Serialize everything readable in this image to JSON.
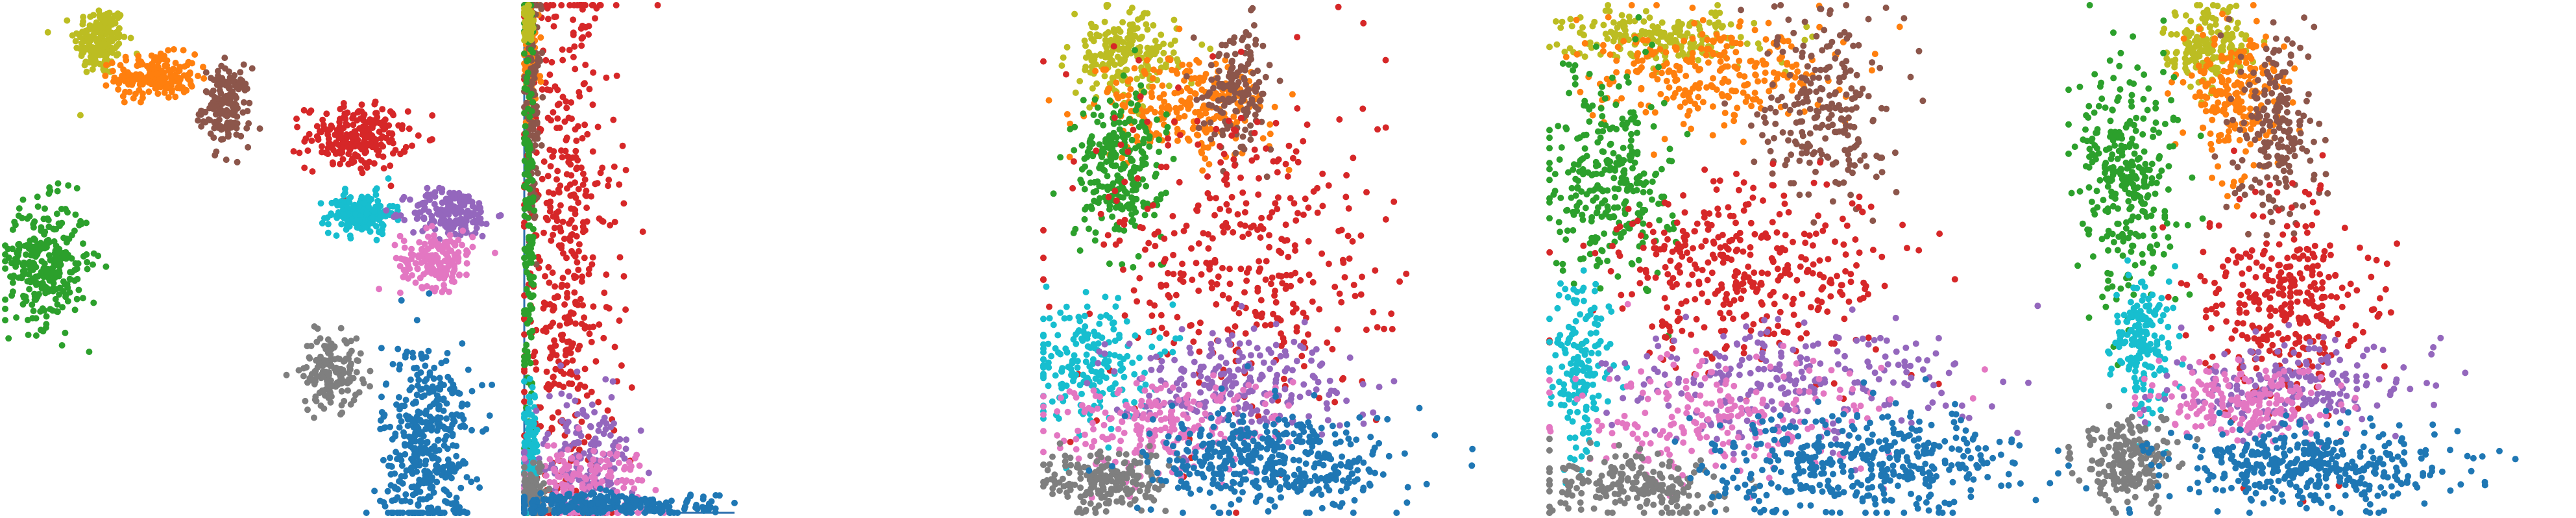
{
  "figure": {
    "palette": {
      "blue": "#1f77b4",
      "orange": "#ff7f0e",
      "green": "#2ca02c",
      "red": "#d62728",
      "purple": "#9467bd",
      "brown": "#8c564b",
      "pink": "#e377c2",
      "gray": "#7f7f7f",
      "olive": "#bcbd22",
      "cyan": "#17becf"
    }
  },
  "chart_data": [
    {
      "type": "scatter",
      "title": "",
      "xlabel": "",
      "ylabel": "",
      "axes_visible": false,
      "grid": false,
      "xlim": [
        0,
        100
      ],
      "ylim": [
        0,
        100
      ],
      "clusters": [
        {
          "color": "olive",
          "cx": 19,
          "cy": 93,
          "sx": 2.6,
          "sy": 3.5,
          "n": 180
        },
        {
          "color": "orange",
          "cx": 30,
          "cy": 86,
          "sx": 4.0,
          "sy": 2.2,
          "n": 190
        },
        {
          "color": "brown",
          "cx": 44,
          "cy": 80,
          "sx": 2.4,
          "sy": 3.8,
          "n": 160
        },
        {
          "color": "red",
          "cx": 70,
          "cy": 74,
          "sx": 5.0,
          "sy": 3.2,
          "n": 220
        },
        {
          "color": "cyan",
          "cx": 71,
          "cy": 59,
          "sx": 3.2,
          "sy": 2.0,
          "n": 170
        },
        {
          "color": "purple",
          "cx": 89,
          "cy": 59,
          "sx": 4.2,
          "sy": 2.4,
          "n": 190
        },
        {
          "color": "pink",
          "cx": 86,
          "cy": 50,
          "sx": 3.6,
          "sy": 2.8,
          "n": 170
        },
        {
          "color": "green",
          "cx": 8,
          "cy": 49,
          "sx": 4.2,
          "sy": 6.0,
          "n": 300
        },
        {
          "color": "gray",
          "cx": 65,
          "cy": 28,
          "sx": 3.0,
          "sy": 3.5,
          "n": 150
        },
        {
          "color": "blue",
          "cx": 84,
          "cy": 13,
          "sx": 4.5,
          "sy": 10.5,
          "n": 420
        }
      ]
    },
    {
      "type": "scatter",
      "title": "",
      "xlabel": "",
      "ylabel": "",
      "axes_visible": false,
      "grid": false,
      "xlim": [
        0,
        100
      ],
      "ylim": [
        0,
        100
      ],
      "clusters": [
        {
          "color": "red",
          "cx": 20,
          "cy": 50,
          "sx": 12,
          "sy": 30,
          "n": 480
        },
        {
          "color": "orange",
          "cx": 3,
          "cy": 90,
          "sx": 2.0,
          "sy": 7,
          "n": 110
        },
        {
          "color": "brown",
          "cx": 4,
          "cy": 80,
          "sx": 2.0,
          "sy": 10,
          "n": 110
        },
        {
          "color": "green",
          "cx": 2,
          "cy": 55,
          "sx": 1.5,
          "sy": 25,
          "n": 170
        },
        {
          "color": "cyan",
          "cx": 3,
          "cy": 12,
          "sx": 2.0,
          "sy": 6,
          "n": 90
        },
        {
          "color": "purple",
          "cx": 28,
          "cy": 11,
          "sx": 12,
          "sy": 6,
          "n": 150
        },
        {
          "color": "pink",
          "cx": 30,
          "cy": 6,
          "sx": 14,
          "sy": 4,
          "n": 150
        },
        {
          "color": "gray",
          "cx": 4,
          "cy": 4,
          "sx": 3.0,
          "sy": 3,
          "n": 90
        },
        {
          "color": "blue",
          "cx": 40,
          "cy": 1.5,
          "sx": 25,
          "sy": 1.2,
          "n": 260
        },
        {
          "color": "olive",
          "cx": 2,
          "cy": 97,
          "sx": 1.5,
          "sy": 2,
          "n": 50
        }
      ]
    },
    {
      "type": "scatter",
      "title": "",
      "xlabel": "",
      "ylabel": "",
      "axes_visible": false,
      "grid": false,
      "xlim": [
        0,
        100
      ],
      "ylim": [
        0,
        100
      ],
      "clusters": [
        {
          "color": "olive",
          "cx": 18,
          "cy": 90,
          "sx": 6,
          "sy": 4,
          "n": 200
        },
        {
          "color": "orange",
          "cx": 32,
          "cy": 80,
          "sx": 10,
          "sy": 5,
          "n": 240
        },
        {
          "color": "brown",
          "cx": 44,
          "cy": 84,
          "sx": 4,
          "sy": 6,
          "n": 150
        },
        {
          "color": "green",
          "cx": 17,
          "cy": 68,
          "sx": 5,
          "sy": 7,
          "n": 260
        },
        {
          "color": "red",
          "cx": 45,
          "cy": 50,
          "sx": 16,
          "sy": 18,
          "n": 380
        },
        {
          "color": "cyan",
          "cx": 10,
          "cy": 30,
          "sx": 7,
          "sy": 6,
          "n": 200
        },
        {
          "color": "purple",
          "cx": 42,
          "cy": 26,
          "sx": 14,
          "sy": 5,
          "n": 230
        },
        {
          "color": "pink",
          "cx": 26,
          "cy": 17,
          "sx": 14,
          "sy": 5,
          "n": 220
        },
        {
          "color": "gray",
          "cx": 14,
          "cy": 6,
          "sx": 7,
          "sy": 3,
          "n": 200
        },
        {
          "color": "blue",
          "cx": 52,
          "cy": 10,
          "sx": 14,
          "sy": 5,
          "n": 420
        }
      ]
    },
    {
      "type": "scatter",
      "title": "",
      "xlabel": "",
      "ylabel": "",
      "axes_visible": false,
      "grid": false,
      "xlim": [
        0,
        100
      ],
      "ylim": [
        0,
        100
      ],
      "clusters": [
        {
          "color": "olive",
          "cx": 22,
          "cy": 94,
          "sx": 9,
          "sy": 2.5,
          "n": 200
        },
        {
          "color": "orange",
          "cx": 32,
          "cy": 86,
          "sx": 13,
          "sy": 5,
          "n": 260
        },
        {
          "color": "brown",
          "cx": 54,
          "cy": 80,
          "sx": 6,
          "sy": 10,
          "n": 230
        },
        {
          "color": "green",
          "cx": 12,
          "cy": 66,
          "sx": 6,
          "sy": 10,
          "n": 290
        },
        {
          "color": "red",
          "cx": 40,
          "cy": 48,
          "sx": 15,
          "sy": 9,
          "n": 360
        },
        {
          "color": "cyan",
          "cx": 6,
          "cy": 28,
          "sx": 3,
          "sy": 9,
          "n": 160
        },
        {
          "color": "purple",
          "cx": 46,
          "cy": 26,
          "sx": 18,
          "sy": 6,
          "n": 240
        },
        {
          "color": "pink",
          "cx": 34,
          "cy": 18,
          "sx": 16,
          "sy": 6,
          "n": 220
        },
        {
          "color": "gray",
          "cx": 18,
          "cy": 5,
          "sx": 10,
          "sy": 3,
          "n": 210
        },
        {
          "color": "blue",
          "cx": 62,
          "cy": 10,
          "sx": 15,
          "sy": 5,
          "n": 420
        }
      ]
    },
    {
      "type": "scatter",
      "title": "",
      "xlabel": "",
      "ylabel": "",
      "axes_visible": false,
      "grid": false,
      "xlim": [
        0,
        100
      ],
      "ylim": [
        0,
        100
      ],
      "clusters": [
        {
          "color": "olive",
          "cx": 28,
          "cy": 92,
          "sx": 4,
          "sy": 4,
          "n": 180
        },
        {
          "color": "orange",
          "cx": 34,
          "cy": 82,
          "sx": 5,
          "sy": 7,
          "n": 210
        },
        {
          "color": "brown",
          "cx": 42,
          "cy": 76,
          "sx": 4,
          "sy": 9,
          "n": 200
        },
        {
          "color": "green",
          "cx": 12,
          "cy": 66,
          "sx": 5,
          "sy": 12,
          "n": 300
        },
        {
          "color": "red",
          "cx": 44,
          "cy": 42,
          "sx": 8,
          "sy": 10,
          "n": 320
        },
        {
          "color": "cyan",
          "cx": 15,
          "cy": 33,
          "sx": 3,
          "sy": 7,
          "n": 170
        },
        {
          "color": "purple",
          "cx": 46,
          "cy": 25,
          "sx": 12,
          "sy": 4,
          "n": 200
        },
        {
          "color": "pink",
          "cx": 35,
          "cy": 22,
          "sx": 9,
          "sy": 4,
          "n": 200
        },
        {
          "color": "gray",
          "cx": 12,
          "cy": 10,
          "sx": 5,
          "sy": 4,
          "n": 200
        },
        {
          "color": "blue",
          "cx": 48,
          "cy": 9,
          "sx": 14,
          "sy": 4,
          "n": 400
        }
      ]
    }
  ]
}
